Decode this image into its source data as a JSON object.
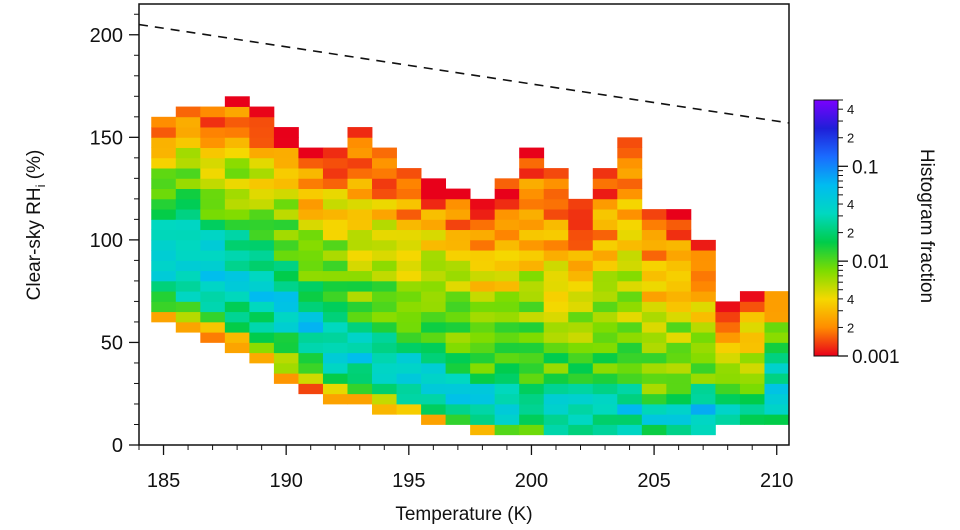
{
  "chart_data": {
    "type": "heatmap",
    "xlabel": "Temperature (K)",
    "ylabel_main": "Clear-sky RH",
    "ylabel_sub": "i",
    "ylabel_unit": " (%)",
    "xlim": [
      184,
      210.5
    ],
    "ylim": [
      0,
      215
    ],
    "x_ticks": [
      185,
      190,
      195,
      200,
      205,
      210
    ],
    "y_ticks": [
      0,
      50,
      100,
      150,
      200
    ],
    "x_bin_width_K": 1,
    "y_bin_width_pct": 5,
    "reference_line": {
      "style": "dashed",
      "points": [
        {
          "x": 184,
          "y": 205
        },
        {
          "x": 210.5,
          "y": 157
        }
      ]
    },
    "colorbar": {
      "label": "Histogram fraction",
      "scale": "log",
      "range": [
        0.001,
        0.5
      ],
      "major_tick_labels": [
        "0.001",
        "0.01",
        "0.1"
      ],
      "minor_tick_labels": [
        "2",
        "4",
        "2",
        "4",
        "2",
        "4"
      ],
      "minor_tick_values": [
        0.002,
        0.004,
        0.02,
        0.04,
        0.2,
        0.4
      ],
      "colors": [
        "#e8001a",
        "#ff8c00",
        "#f5d800",
        "#7ddc00",
        "#00cc4a",
        "#00d8c0",
        "#00bcf0",
        "#1a6cff",
        "#1f1fd8",
        "#7a00ff"
      ]
    },
    "columns": [
      {
        "x": 185,
        "y_min": 60,
        "y_max": 160,
        "ridge_lo": 70,
        "ridge_hi": 120
      },
      {
        "x": 186,
        "y_min": 55,
        "y_max": 165,
        "ridge_lo": 65,
        "ridge_hi": 115
      },
      {
        "x": 187,
        "y_min": 50,
        "y_max": 165,
        "ridge_lo": 62,
        "ridge_hi": 110
      },
      {
        "x": 188,
        "y_min": 45,
        "y_max": 170,
        "ridge_lo": 58,
        "ridge_hi": 105
      },
      {
        "x": 189,
        "y_min": 40,
        "y_max": 165,
        "ridge_lo": 52,
        "ridge_hi": 100
      },
      {
        "x": 190,
        "y_min": 30,
        "y_max": 155,
        "ridge_lo": 45,
        "ridge_hi": 92
      },
      {
        "x": 191,
        "y_min": 25,
        "y_max": 145,
        "ridge_lo": 38,
        "ridge_hi": 80
      },
      {
        "x": 192,
        "y_min": 20,
        "y_max": 145,
        "ridge_lo": 32,
        "ridge_hi": 70
      },
      {
        "x": 193,
        "y_min": 20,
        "y_max": 155,
        "ridge_lo": 28,
        "ridge_hi": 62
      },
      {
        "x": 194,
        "y_min": 15,
        "y_max": 145,
        "ridge_lo": 24,
        "ridge_hi": 56
      },
      {
        "x": 195,
        "y_min": 15,
        "y_max": 135,
        "ridge_lo": 20,
        "ridge_hi": 50
      },
      {
        "x": 196,
        "y_min": 10,
        "y_max": 130,
        "ridge_lo": 16,
        "ridge_hi": 45
      },
      {
        "x": 197,
        "y_min": 10,
        "y_max": 125,
        "ridge_lo": 12,
        "ridge_hi": 40
      },
      {
        "x": 198,
        "y_min": 5,
        "y_max": 120,
        "ridge_lo": 10,
        "ridge_hi": 36
      },
      {
        "x": 199,
        "y_min": 5,
        "y_max": 130,
        "ridge_lo": 8,
        "ridge_hi": 34
      },
      {
        "x": 200,
        "y_min": 5,
        "y_max": 145,
        "ridge_lo": 8,
        "ridge_hi": 32
      },
      {
        "x": 201,
        "y_min": 5,
        "y_max": 135,
        "ridge_lo": 7,
        "ridge_hi": 30
      },
      {
        "x": 202,
        "y_min": 5,
        "y_max": 120,
        "ridge_lo": 7,
        "ridge_hi": 30
      },
      {
        "x": 203,
        "y_min": 5,
        "y_max": 135,
        "ridge_lo": 6,
        "ridge_hi": 30
      },
      {
        "x": 204,
        "y_min": 5,
        "y_max": 150,
        "ridge_lo": 5,
        "ridge_hi": 28
      },
      {
        "x": 205,
        "y_min": 5,
        "y_max": 115,
        "ridge_lo": 6,
        "ridge_hi": 20
      },
      {
        "x": 206,
        "y_min": 5,
        "y_max": 115,
        "ridge_lo": 5,
        "ridge_hi": 25
      },
      {
        "x": 207,
        "y_min": 5,
        "y_max": 100,
        "ridge_lo": 5,
        "ridge_hi": 30
      },
      {
        "x": 208,
        "y_min": 10,
        "y_max": 70,
        "ridge_lo": 10,
        "ridge_hi": 25
      },
      {
        "x": 209,
        "y_min": 10,
        "y_max": 75,
        "ridge_lo": 10,
        "ridge_hi": 22
      },
      {
        "x": 210,
        "y_min": 10,
        "y_max": 75,
        "ridge_lo": 10,
        "ridge_hi": 45
      }
    ]
  }
}
